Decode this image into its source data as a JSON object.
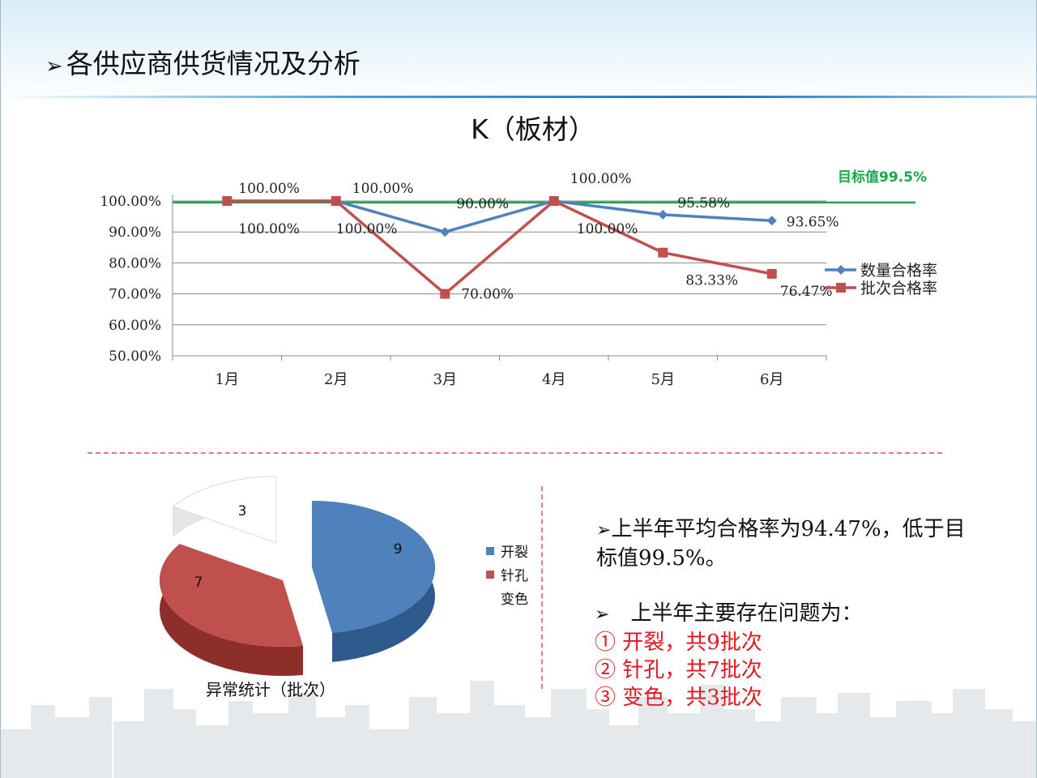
{
  "page": {
    "title_marker": "➢",
    "title": "各供应商供货情况及分析"
  },
  "colors": {
    "series_quantity": "#4f81bd",
    "series_batch": "#c0504d",
    "target_line": "#18a84a",
    "pie_crack": "#4f81bd",
    "pie_pinhole": "#c0504d",
    "pie_discolor": "#ffffff",
    "issue_text": "#e3161f",
    "divider": "#e47b85"
  },
  "chart_data": [
    {
      "type": "line",
      "title": "K（板材）",
      "categories": [
        "1月",
        "2月",
        "3月",
        "4月",
        "5月",
        "6月"
      ],
      "series": [
        {
          "name": "数量合格率",
          "values": [
            100.0,
            100.0,
            90.0,
            100.0,
            95.58,
            93.65
          ],
          "marker": "diamond"
        },
        {
          "name": "批次合格率",
          "values": [
            100.0,
            100.0,
            70.0,
            100.0,
            83.33,
            76.47
          ],
          "marker": "square"
        }
      ],
      "point_labels": {
        "数量合格率": [
          "100.00%",
          "100.00%",
          "90.00%",
          "100.00%",
          "95.58%",
          "93.65%"
        ],
        "批次合格率": [
          "100.00%",
          "100.00%",
          "70.00%",
          "100.00%",
          "83.33%",
          "76.47%"
        ]
      },
      "ylim": [
        50,
        100
      ],
      "yticks": [
        "50.00%",
        "60.00%",
        "70.00%",
        "80.00%",
        "90.00%",
        "100.00%"
      ],
      "target": {
        "value": 99.5,
        "label": "目标值99.5%"
      },
      "grid": true,
      "legend": "right"
    },
    {
      "type": "pie",
      "title": "异常统计（批次）",
      "categories": [
        "开裂",
        "针孔",
        "变色"
      ],
      "values": [
        9,
        7,
        3
      ],
      "legend": "right"
    }
  ],
  "summary": {
    "marker": "➢",
    "average_text": "上半年平均合格率为94.47%，低于目标值99.5%。"
  },
  "issues": {
    "heading_marker": "➢",
    "heading": "上半年主要存在问题为：",
    "items": [
      "①  开裂，共9批次",
      "②  针孔，共7批次",
      "③  变色，共3批次"
    ]
  }
}
